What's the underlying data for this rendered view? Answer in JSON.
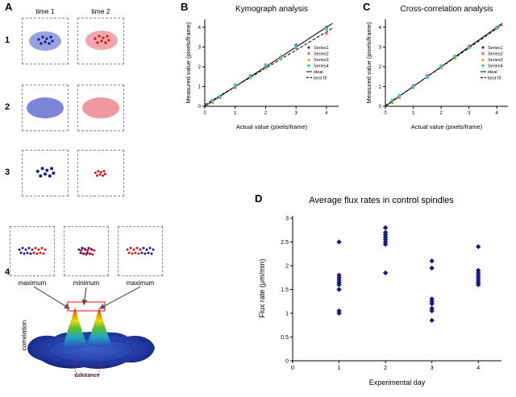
{
  "panelA": {
    "label": "A",
    "time1": "time 1",
    "time2": "time 2",
    "rows": [
      "1",
      "2",
      "3",
      "4"
    ],
    "peak_labels": [
      "maximum",
      "minimum",
      "maximum"
    ],
    "correlation_label": "correlation",
    "distance_label": "Δdistance",
    "colors": {
      "dot_blue": "#1a1a8c",
      "dot_red": "#cc1a1a",
      "ellipse_blue": "#98a2e0",
      "ellipse_pink": "#f2a6ad",
      "ellipse_blue_solid": "#7b86d8",
      "ellipse_pink_solid": "#f0989f"
    }
  },
  "panelB": {
    "label": "B"
  },
  "panelC": {
    "label": "C"
  },
  "panelD": {
    "label": "D"
  },
  "chart_data": [
    {
      "id": "kymograph",
      "type": "scatter",
      "title": "Kymograph analysis",
      "xlabel": "Actual value (pixels/frame)",
      "ylabel": "Measured value (pixels/frame)",
      "xlim": [
        0,
        4.4
      ],
      "ylim": [
        0,
        4.4
      ],
      "xticks": [
        0,
        1,
        2,
        3,
        4
      ],
      "yticks": [
        0,
        1,
        2,
        3,
        4
      ],
      "grid": false,
      "legend_position": "inside-right",
      "series": [
        {
          "name": "Series1",
          "marker": "diamond",
          "color": "#26268c",
          "x": [
            0.25,
            0.5,
            1,
            1.5,
            2,
            2.5,
            3,
            4
          ],
          "y": [
            0.25,
            0.5,
            1.0,
            1.55,
            2.0,
            2.5,
            3.1,
            4.0
          ]
        },
        {
          "name": "Series2",
          "marker": "square",
          "color": "#e8679f",
          "x": [
            0.25,
            0.5,
            1,
            1.5,
            2,
            2.5,
            3,
            4
          ],
          "y": [
            0.3,
            0.45,
            0.95,
            1.5,
            2.1,
            2.45,
            2.95,
            3.7
          ]
        },
        {
          "name": "Series3",
          "marker": "triangle",
          "color": "#b0a830",
          "x": [
            0.25,
            0.5,
            1,
            1.5,
            2,
            2.5,
            3,
            4
          ],
          "y": [
            0.2,
            0.55,
            1.05,
            1.45,
            1.95,
            2.55,
            3.0,
            3.9
          ]
        },
        {
          "name": "Series4",
          "marker": "star",
          "color": "#35c4d4",
          "x": [
            0.25,
            0.5,
            1,
            1.5,
            2,
            2.5,
            3,
            4
          ],
          "y": [
            0.3,
            0.5,
            1.1,
            1.5,
            2.05,
            2.4,
            3.05,
            3.95
          ]
        }
      ],
      "lines": [
        {
          "name": "ideal",
          "style": "solid",
          "color": "#000000",
          "points": [
            [
              0,
              0
            ],
            [
              4.2,
              4.2
            ]
          ]
        },
        {
          "name": "best fit",
          "style": "dashed",
          "color": "#000000",
          "points": [
            [
              0,
              0.08
            ],
            [
              4.2,
              3.95
            ]
          ]
        }
      ]
    },
    {
      "id": "cross-correlation",
      "type": "scatter",
      "title": "Cross-correlation analysis",
      "xlabel": "Actual value (pixels/frame)",
      "ylabel": "Measured value (pixels/frame)",
      "xlim": [
        0,
        4.4
      ],
      "ylim": [
        0,
        4.4
      ],
      "xticks": [
        0,
        1,
        2,
        3,
        4
      ],
      "yticks": [
        0,
        1,
        2,
        3,
        4
      ],
      "grid": false,
      "legend_position": "inside-right",
      "series": [
        {
          "name": "Series1",
          "marker": "diamond",
          "color": "#26268c",
          "x": [
            0.25,
            0.5,
            1,
            1.5,
            2,
            2.5,
            3,
            4
          ],
          "y": [
            0.25,
            0.5,
            1.0,
            1.5,
            2.0,
            2.5,
            3.0,
            4.0
          ]
        },
        {
          "name": "Series2",
          "marker": "square",
          "color": "#e8679f",
          "x": [
            0.25,
            0.5,
            1,
            1.5,
            2,
            2.5,
            3,
            4
          ],
          "y": [
            0.3,
            0.5,
            1.05,
            1.55,
            2.0,
            2.5,
            3.05,
            3.95
          ]
        },
        {
          "name": "Series3",
          "marker": "triangle",
          "color": "#b0a830",
          "x": [
            0.25,
            0.5,
            1,
            1.5,
            2,
            2.5,
            3,
            4
          ],
          "y": [
            0.2,
            0.45,
            0.95,
            1.5,
            1.95,
            2.45,
            3.0,
            4.0
          ]
        },
        {
          "name": "Series4",
          "marker": "star",
          "color": "#35c4d4",
          "x": [
            0.25,
            0.5,
            1,
            1.5,
            2,
            2.5,
            3,
            4
          ],
          "y": [
            0.3,
            0.55,
            1.0,
            1.45,
            2.05,
            2.55,
            2.95,
            4.0
          ]
        }
      ],
      "lines": [
        {
          "name": "ideal",
          "style": "solid",
          "color": "#000000",
          "points": [
            [
              0,
              0
            ],
            [
              4.2,
              4.2
            ]
          ]
        },
        {
          "name": "best fit",
          "style": "dashed",
          "color": "#000000",
          "points": [
            [
              0,
              0.03
            ],
            [
              4.2,
              4.12
            ]
          ]
        }
      ]
    },
    {
      "id": "flux-rates",
      "type": "scatter",
      "title": "Average flux rates in control spindles",
      "xlabel": "Experimental day",
      "ylabel": "Flux rate (μm/min)",
      "xlim": [
        0,
        4.5
      ],
      "ylim": [
        0,
        3.05
      ],
      "xticks": [
        0,
        1,
        2,
        3,
        4
      ],
      "yticks": [
        0,
        0.5,
        1,
        1.5,
        2,
        2.5,
        3
      ],
      "grid": false,
      "legend_position": "none",
      "series": [
        {
          "name": "control spindles",
          "marker": "diamond",
          "color": "#1a1a7e",
          "x": [
            1,
            1,
            1,
            1,
            1,
            1,
            1,
            1,
            1,
            2,
            2,
            2,
            2,
            2,
            2,
            2,
            2,
            3,
            3,
            3,
            3,
            3,
            3,
            3,
            3,
            4,
            4,
            4,
            4,
            4,
            4,
            4,
            4
          ],
          "y": [
            2.5,
            1.8,
            1.75,
            1.7,
            1.65,
            1.6,
            1.5,
            1.05,
            1.0,
            2.8,
            2.7,
            2.65,
            2.6,
            2.55,
            2.5,
            2.45,
            1.85,
            2.1,
            1.95,
            1.3,
            1.25,
            1.2,
            1.1,
            1.05,
            0.85,
            2.4,
            1.9,
            1.85,
            1.8,
            1.75,
            1.7,
            1.65,
            1.6
          ]
        }
      ],
      "lines": []
    }
  ]
}
